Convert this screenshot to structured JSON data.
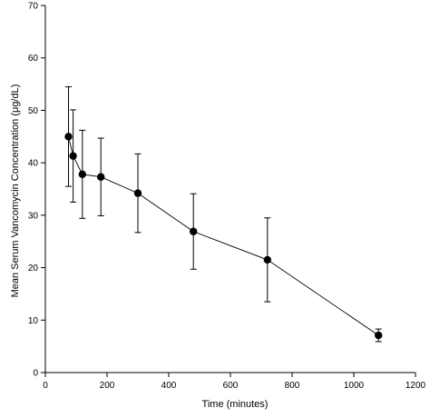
{
  "chart_data": {
    "type": "scatter",
    "xlabel": "Time (minutes)",
    "ylabel": "Mean Serum Vancomycin Concentration (μg/dL)",
    "xlim": [
      0,
      1200
    ],
    "ylim": [
      0,
      70
    ],
    "xticks": [
      0,
      200,
      400,
      600,
      800,
      1000,
      1200
    ],
    "xtick_labels": [
      "0",
      "200",
      "400",
      "600",
      "800",
      "1000",
      "1200"
    ],
    "yticks": [
      0,
      10,
      20,
      30,
      40,
      50,
      60,
      70
    ],
    "ytick_labels": [
      "0",
      "10",
      "20",
      "30",
      "40",
      "50",
      "60",
      "70"
    ],
    "grid": false,
    "series": [
      {
        "connected": true,
        "points": [
          {
            "x": 75,
            "y": 45,
            "err": 9.5
          },
          {
            "x": 90,
            "y": 41.3,
            "err": 8.8
          },
          {
            "x": 120,
            "y": 37.8,
            "err": 8.4
          },
          {
            "x": 180,
            "y": 37.3,
            "err": 7.4
          },
          {
            "x": 300,
            "y": 34.2,
            "err": 7.5
          },
          {
            "x": 480,
            "y": 26.9,
            "err": 7.2
          },
          {
            "x": 720,
            "y": 21.5,
            "err": 8
          },
          {
            "x": 1080,
            "y": 7.1,
            "err": 1.2
          }
        ]
      }
    ]
  }
}
